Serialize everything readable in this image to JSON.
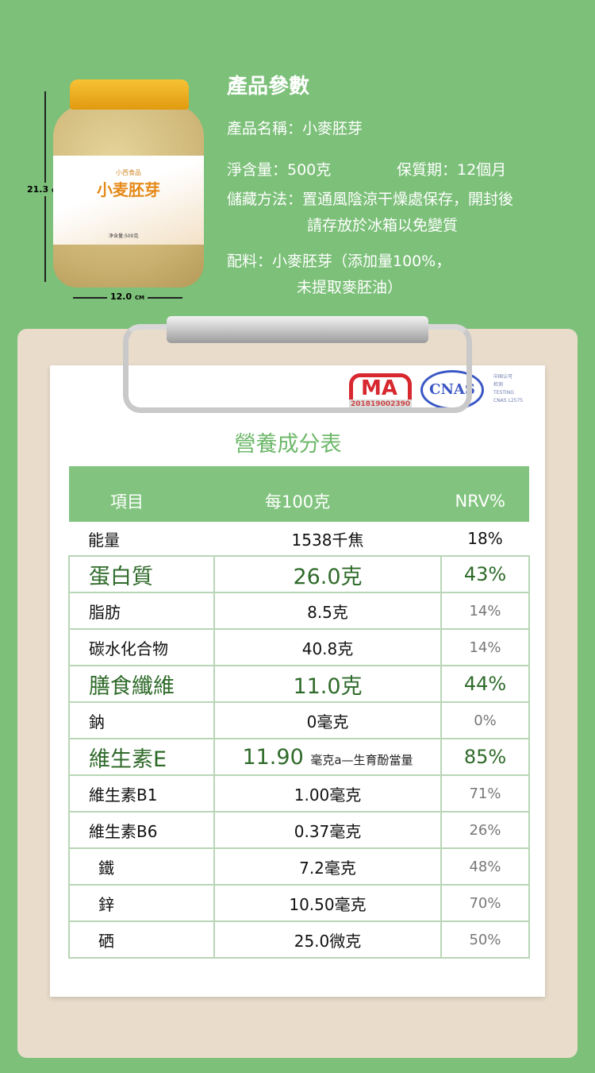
{
  "product_image": {
    "height_label": "21.3",
    "height_unit": "CM",
    "width_label": "12.0",
    "width_unit": "CM",
    "brand": "小西食品",
    "name": "小麦胚芽",
    "net": "净含量:500克"
  },
  "params": {
    "title": "產品參數",
    "name": "產品名稱：小麥胚芽",
    "net": "淨含量：500克",
    "shelf": "保質期：12個月",
    "storage1": "儲藏方法：置通風陰涼干燥處保存，開封後",
    "storage2": "請存放於冰箱以免變質",
    "ingredients1": "配料：小麥胚芽（添加量100%，",
    "ingredients2": "未提取麥胚油）"
  },
  "cert": {
    "ma": "MA",
    "ma_number": "201819002390",
    "cnas": "CNAS",
    "cnas_text1": "中国认可",
    "cnas_text2": "检测",
    "cnas_text3": "TESTING",
    "cnas_text4": "CNAS L2575"
  },
  "table": {
    "title": "營養成分表",
    "headers": [
      "項目",
      "每100克",
      "NRV%"
    ],
    "rows": [
      {
        "item": "能量",
        "value": "1538千焦",
        "nrv": "18%"
      },
      {
        "item": "蛋白質",
        "value": "26.0克",
        "nrv": "43%"
      },
      {
        "item": "脂肪",
        "value": "8.5克",
        "nrv": "14%"
      },
      {
        "item": "碳水化合物",
        "value": "40.8克",
        "nrv": "14%"
      },
      {
        "item": "膳食纖維",
        "value": "11.0克",
        "nrv": "44%"
      },
      {
        "item": "鈉",
        "value": "0毫克",
        "nrv": "0%"
      },
      {
        "item": "維生素E",
        "value": "11.90",
        "unit": "毫克a—生育酚當量",
        "nrv": "85%"
      },
      {
        "item": "維生素B1",
        "value": "1.00毫克",
        "nrv": "71%"
      },
      {
        "item": "維生素B6",
        "value": "0.37毫克",
        "nrv": "26%"
      },
      {
        "item": "鐵",
        "value": "7.2毫克",
        "nrv": "48%"
      },
      {
        "item": "鋅",
        "value": "10.50毫克",
        "nrv": "70%"
      },
      {
        "item": "硒",
        "value": "25.0微克",
        "nrv": "50%"
      }
    ]
  },
  "colors": {
    "background": "#7cc079",
    "accent_green": "#2f6b2a",
    "header_green": "#82c47f"
  }
}
